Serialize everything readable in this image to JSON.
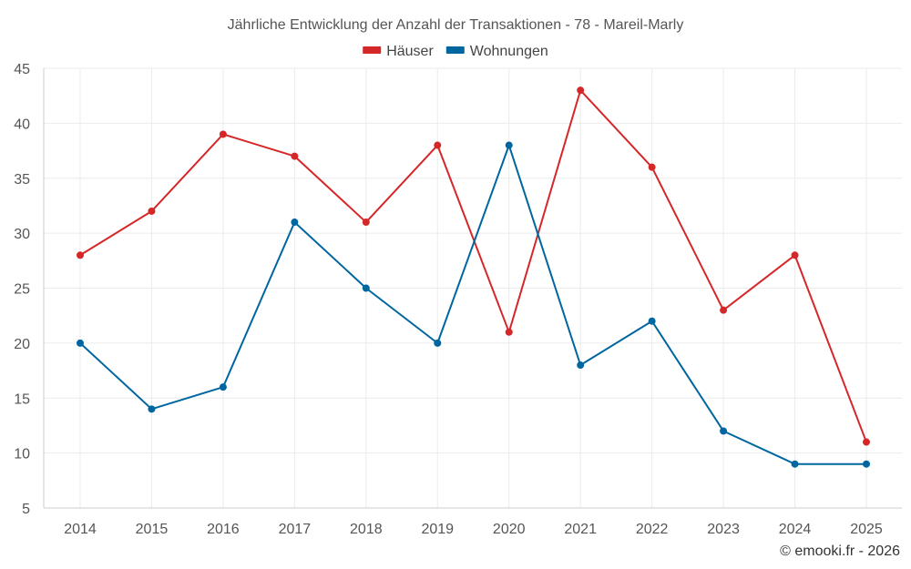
{
  "chart_data": {
    "type": "line",
    "title": "Jährliche Entwicklung der Anzahl der Transaktionen - 78 - Mareil-Marly",
    "categories": [
      "2014",
      "2015",
      "2016",
      "2017",
      "2018",
      "2019",
      "2020",
      "2021",
      "2022",
      "2023",
      "2024",
      "2025"
    ],
    "series": [
      {
        "name": "Häuser",
        "color": "#d62728",
        "values": [
          28,
          32,
          39,
          37,
          31,
          38,
          21,
          43,
          36,
          23,
          28,
          11
        ]
      },
      {
        "name": "Wohnungen",
        "color": "#0066a0",
        "values": [
          20,
          14,
          16,
          31,
          25,
          20,
          38,
          18,
          22,
          12,
          9,
          9
        ]
      }
    ],
    "ylim": [
      5,
      45
    ],
    "yticks": [
      5,
      10,
      15,
      20,
      25,
      30,
      35,
      40,
      45
    ],
    "xlabel": "",
    "ylabel": "",
    "grid": true,
    "legend_position": "top-center"
  },
  "credit": "© emooki.fr - 2026"
}
